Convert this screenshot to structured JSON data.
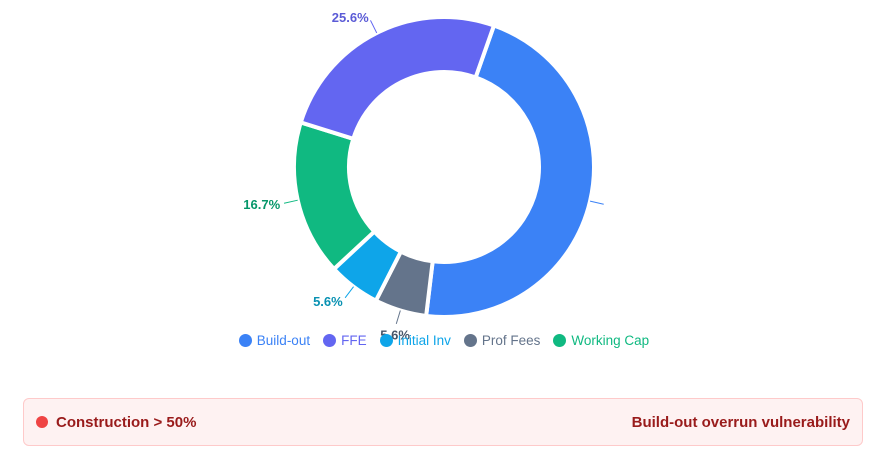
{
  "chart_data": {
    "type": "pie",
    "donut": true,
    "categories": [
      "Build-out",
      "FFE",
      "Initial Inv",
      "Prof Fees",
      "Working Cap"
    ],
    "values": [
      46.5,
      25.6,
      5.6,
      5.6,
      16.7
    ],
    "labels": [
      "",
      "25.6%",
      "5.6%",
      "5.6%",
      "16.7%"
    ],
    "colors": [
      "#3b82f6",
      "#6366f1",
      "#0ea5e9",
      "#64748b",
      "#10b981"
    ],
    "label_colors": [
      "#3b82f6",
      "#5b5bd6",
      "#0891b2",
      "#475569",
      "#059669"
    ],
    "legend_position": "bottom",
    "slice_order": [
      "Build-out",
      "Prof Fees",
      "Initial Inv",
      "Working Cap",
      "FFE"
    ]
  },
  "legend": {
    "items": [
      {
        "label": "Build-out",
        "color": "#3b82f6"
      },
      {
        "label": "FFE",
        "color": "#6366f1"
      },
      {
        "label": "Initial Inv",
        "color": "#0ea5e9"
      },
      {
        "label": "Prof Fees",
        "color": "#64748b"
      },
      {
        "label": "Working Cap",
        "color": "#10b981"
      }
    ]
  },
  "alert": {
    "condition": "Construction > 50%",
    "message": "Build-out overrun vulnerability",
    "dot_color": "#ef4444"
  }
}
